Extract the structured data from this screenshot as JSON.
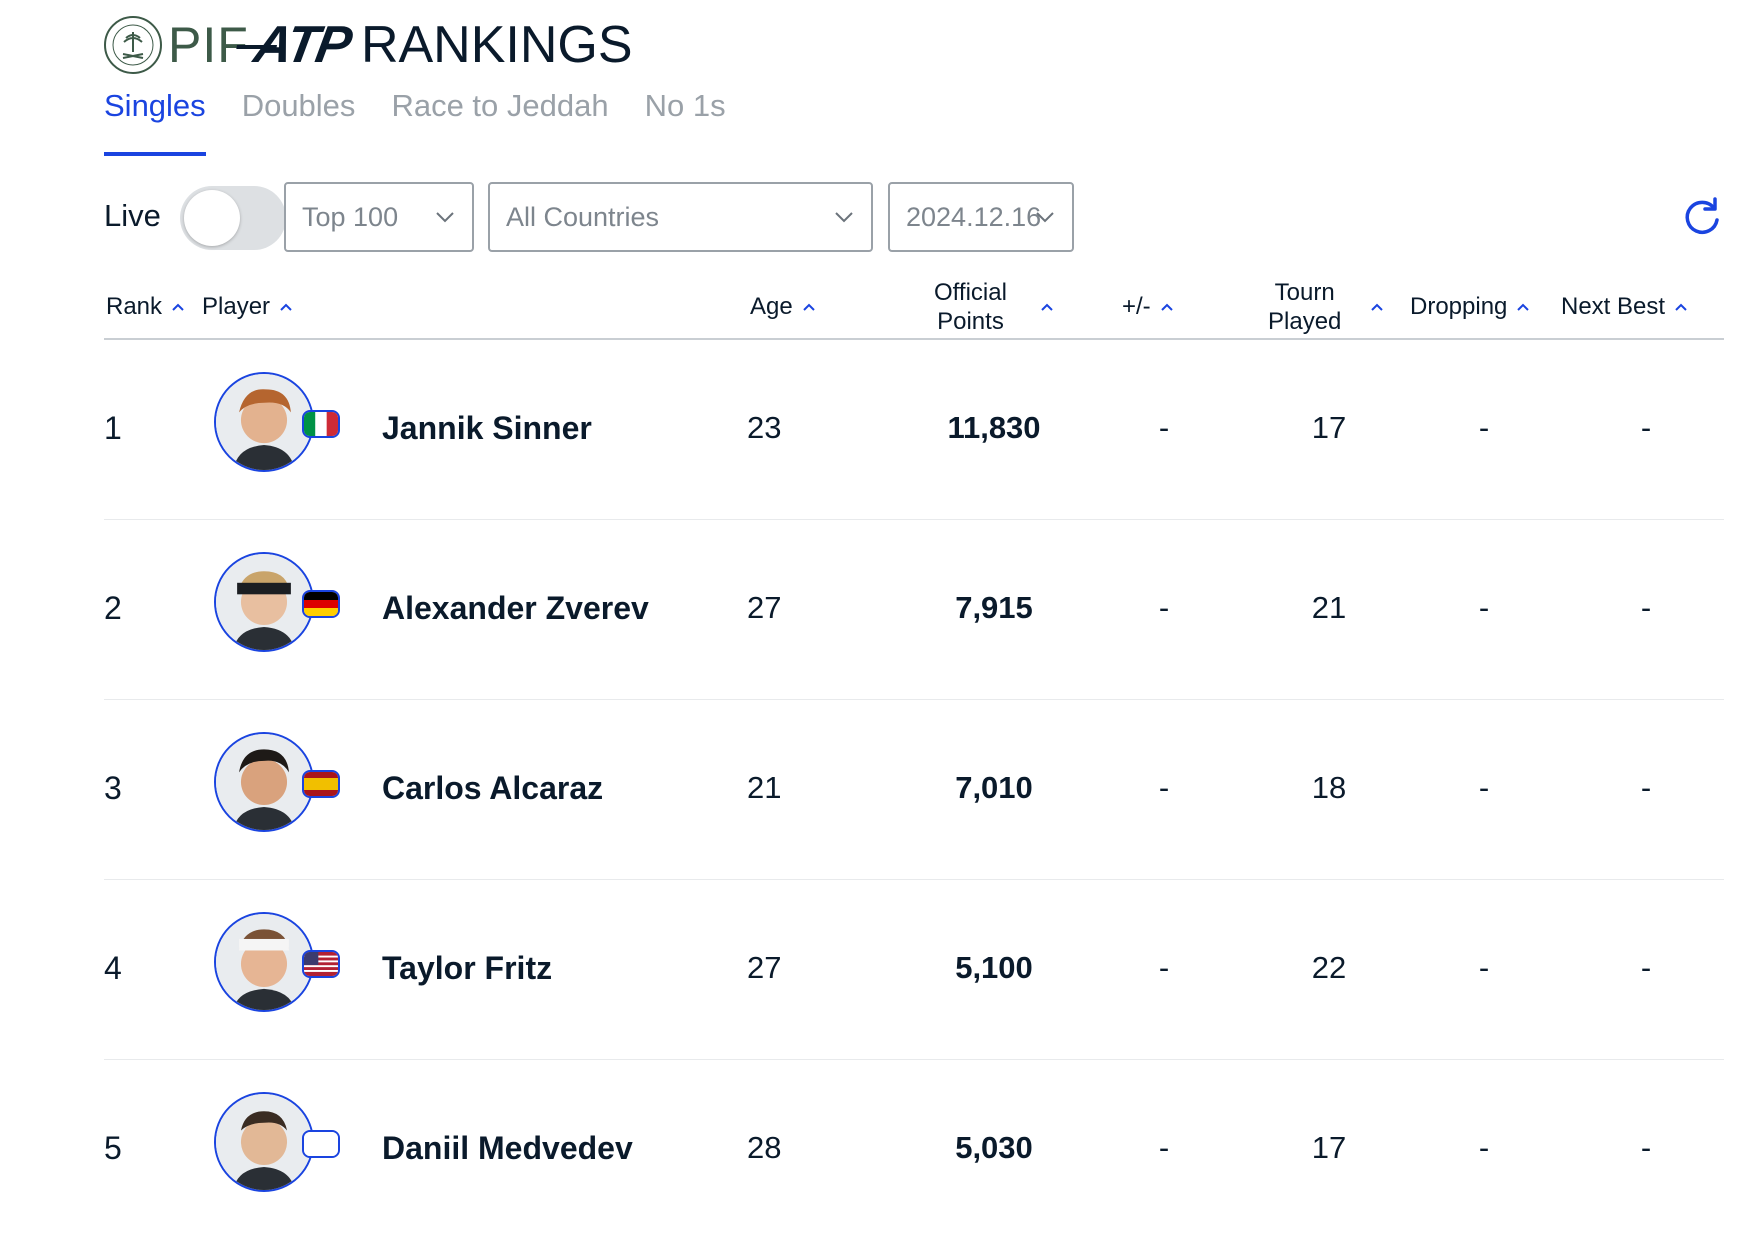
{
  "header": {
    "pif_text": "PIF",
    "atp_text": "ATP",
    "rankings_text": "RANKINGS",
    "seal_icon": "pif-seal-icon"
  },
  "tabs": [
    {
      "label": "Singles",
      "active": true
    },
    {
      "label": "Doubles",
      "active": false
    },
    {
      "label": "Race to Jeddah",
      "active": false
    },
    {
      "label": "No 1s",
      "active": false
    }
  ],
  "controls": {
    "live_label": "Live",
    "live_on": false,
    "range_select": "Top 100",
    "country_select": "All Countries",
    "date_select": "2024.12.16",
    "refresh_icon": "refresh-icon"
  },
  "columns": {
    "rank": "Rank",
    "player": "Player",
    "age": "Age",
    "points_line1": "Official",
    "points_line2": "Points",
    "plusminus": "+/-",
    "tourn_line1": "Tourn",
    "tourn_line2": "Played",
    "dropping": "Dropping",
    "nextbest": "Next Best"
  },
  "players": [
    {
      "rank": "1",
      "name": "Jannik Sinner",
      "age": "23",
      "points": "11,830",
      "plusminus": "-",
      "tourn": "17",
      "dropping": "-",
      "nextbest": "-",
      "flag": "italy-flag-icon"
    },
    {
      "rank": "2",
      "name": "Alexander Zverev",
      "age": "27",
      "points": "7,915",
      "plusminus": "-",
      "tourn": "21",
      "dropping": "-",
      "nextbest": "-",
      "flag": "germany-flag-icon"
    },
    {
      "rank": "3",
      "name": "Carlos Alcaraz",
      "age": "21",
      "points": "7,010",
      "plusminus": "-",
      "tourn": "18",
      "dropping": "-",
      "nextbest": "-",
      "flag": "spain-flag-icon"
    },
    {
      "rank": "4",
      "name": "Taylor Fritz",
      "age": "27",
      "points": "5,100",
      "plusminus": "-",
      "tourn": "22",
      "dropping": "-",
      "nextbest": "-",
      "flag": "usa-flag-icon"
    },
    {
      "rank": "5",
      "name": "Daniil Medvedev",
      "age": "28",
      "points": "5,030",
      "plusminus": "-",
      "tourn": "17",
      "dropping": "-",
      "nextbest": "-",
      "flag": "blank-flag-icon"
    }
  ],
  "colors": {
    "accent": "#1a44e0",
    "text": "#0a1a2b",
    "muted": "#9aa1a8",
    "pif_green": "#3d5a48"
  }
}
